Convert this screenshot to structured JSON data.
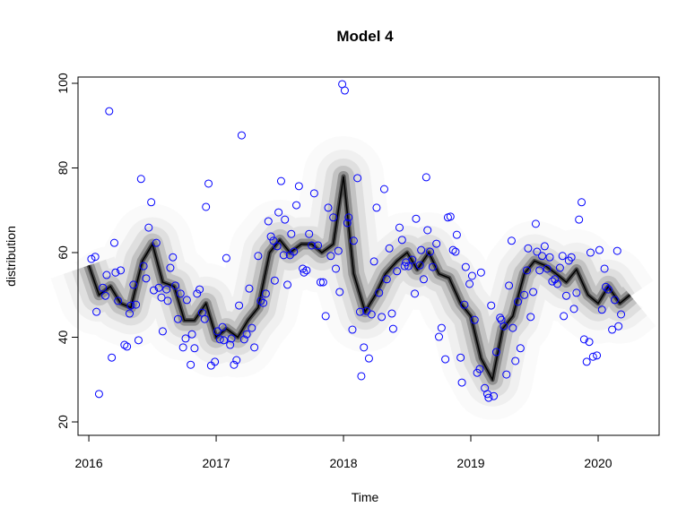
{
  "chart_data": {
    "type": "scatter",
    "title": "Model 4",
    "x_label": "Time",
    "y_label": "distribution",
    "xlim": [
      2015.915,
      2020.479
    ],
    "ylim": [
      16.83,
      101.48
    ],
    "xticks": [
      2016,
      2017,
      2018,
      2019,
      2020
    ],
    "yticks": [
      20,
      40,
      60,
      80,
      100
    ],
    "fan": {
      "color": "#000000",
      "x": [
        2016.0,
        2016.08,
        2016.17,
        2016.25,
        2016.33,
        2016.42,
        2016.5,
        2016.58,
        2016.67,
        2016.75,
        2016.83,
        2016.92,
        2017.0,
        2017.08,
        2017.17,
        2017.25,
        2017.33,
        2017.42,
        2017.5,
        2017.58,
        2017.67,
        2017.75,
        2017.83,
        2017.92,
        2018.0,
        2018.08,
        2018.17,
        2018.25,
        2018.33,
        2018.42,
        2018.5,
        2018.58,
        2018.67,
        2018.75,
        2018.83,
        2018.92,
        2019.0,
        2019.08,
        2019.17,
        2019.25,
        2019.33,
        2019.42,
        2019.5,
        2019.58,
        2019.67,
        2019.75,
        2019.83,
        2019.92,
        2020.0,
        2020.08,
        2020.17,
        2020.25
      ],
      "values": [
        57,
        50,
        52,
        48,
        47,
        58,
        62,
        53,
        52,
        44,
        44,
        48,
        40,
        42,
        40,
        44,
        47,
        60,
        63,
        60,
        62,
        62,
        60,
        62,
        78,
        55,
        46,
        50,
        55,
        58,
        60,
        56,
        60,
        55,
        54,
        48,
        45,
        35,
        30,
        42,
        45,
        55,
        58,
        57,
        55,
        53,
        56,
        50,
        48,
        52,
        48,
        50
      ]
    },
    "series": [
      {
        "color": "#0000ff",
        "x": [
          2016.02,
          2016.05,
          2016.06,
          2016.08,
          2016.11,
          2016.13,
          2016.14,
          2016.16,
          2016.18,
          2016.2,
          2016.21,
          2016.23,
          2016.25,
          2016.28,
          2016.3,
          2016.32,
          2016.33,
          2016.35,
          2016.37,
          2016.39,
          2016.41,
          2016.43,
          2016.45,
          2016.47,
          2016.49,
          2016.51,
          2016.53,
          2016.55,
          2016.57,
          2016.58,
          2016.61,
          2016.62,
          2016.64,
          2016.66,
          2016.68,
          2016.7,
          2016.72,
          2016.74,
          2016.76,
          2016.77,
          2016.8,
          2016.81,
          2016.83,
          2016.85,
          2016.87,
          2016.89,
          2016.91,
          2016.92,
          2016.94,
          2016.96,
          2016.99,
          2017.01,
          2017.03,
          2017.05,
          2017.06,
          2017.08,
          2017.11,
          2017.12,
          2017.14,
          2017.16,
          2017.18,
          2017.2,
          2017.22,
          2017.24,
          2017.26,
          2017.28,
          2017.3,
          2017.33,
          2017.35,
          2017.37,
          2017.39,
          2017.41,
          2017.43,
          2017.45,
          2017.46,
          2017.48,
          2017.49,
          2017.51,
          2017.53,
          2017.54,
          2017.56,
          2017.58,
          2017.59,
          2017.61,
          2017.63,
          2017.65,
          2017.68,
          2017.69,
          2017.71,
          2017.73,
          2017.75,
          2017.77,
          2017.8,
          2017.82,
          2017.84,
          2017.86,
          2017.88,
          2017.9,
          2017.92,
          2017.94,
          2017.96,
          2017.97,
          2017.99,
          2018.01,
          2018.03,
          2018.04,
          2018.07,
          2018.08,
          2018.11,
          2018.13,
          2018.14,
          2018.16,
          2018.18,
          2018.2,
          2018.22,
          2018.24,
          2018.26,
          2018.28,
          2018.3,
          2018.32,
          2018.34,
          2018.36,
          2018.38,
          2018.39,
          2018.42,
          2018.44,
          2018.46,
          2018.48,
          2018.49,
          2018.51,
          2018.54,
          2018.56,
          2018.57,
          2018.6,
          2018.61,
          2018.63,
          2018.65,
          2018.66,
          2018.68,
          2018.7,
          2018.73,
          2018.75,
          2018.77,
          2018.8,
          2018.82,
          2018.84,
          2018.86,
          2018.88,
          2018.89,
          2018.92,
          2018.93,
          2018.95,
          2018.96,
          2018.99,
          2019.01,
          2019.03,
          2019.05,
          2019.07,
          2019.08,
          2019.11,
          2019.13,
          2019.14,
          2019.16,
          2019.18,
          2019.2,
          2019.23,
          2019.24,
          2019.26,
          2019.28,
          2019.3,
          2019.32,
          2019.33,
          2019.35,
          2019.37,
          2019.39,
          2019.42,
          2019.44,
          2019.45,
          2019.47,
          2019.49,
          2019.51,
          2019.52,
          2019.54,
          2019.56,
          2019.58,
          2019.6,
          2019.62,
          2019.64,
          2019.66,
          2019.68,
          2019.7,
          2019.72,
          2019.73,
          2019.75,
          2019.77,
          2019.79,
          2019.81,
          2019.83,
          2019.85,
          2019.87,
          2019.89,
          2019.91,
          2019.93,
          2019.94,
          2019.96,
          2019.99,
          2020.01,
          2020.03,
          2020.05,
          2020.06,
          2020.08,
          2020.11,
          2020.13,
          2020.15,
          2020.16,
          2020.18
        ],
        "values": [
          58.5,
          59,
          46,
          26.6,
          51.7,
          49.8,
          54.7,
          93.4,
          35.2,
          62.3,
          55.3,
          48.6,
          55.8,
          38.2,
          37.8,
          45.6,
          47.5,
          52.4,
          47.7,
          39.3,
          77.4,
          56.8,
          53.9,
          65.9,
          71.9,
          51.1,
          62.3,
          51.7,
          49.4,
          41.4,
          51.3,
          48.6,
          56.4,
          58.9,
          52.2,
          44.3,
          50.3,
          37.6,
          39.7,
          48.8,
          33.5,
          40.7,
          37.4,
          50.3,
          51.3,
          45.8,
          44.3,
          70.8,
          76.3,
          33.3,
          34.2,
          41.4,
          39.5,
          42.4,
          39.3,
          58.7,
          38.2,
          39.7,
          33.5,
          34.6,
          47.5,
          87.7,
          39.5,
          40.7,
          51.5,
          42.2,
          37.6,
          59.2,
          48.6,
          48.1,
          50.3,
          67.4,
          63.8,
          62.8,
          53.4,
          61.5,
          69.5,
          76.9,
          59.4,
          67.8,
          52.4,
          59.4,
          64.4,
          60.2,
          71.2,
          75.7,
          56.2,
          55.3,
          55.8,
          64.4,
          61.7,
          74,
          61.7,
          53,
          53,
          45,
          70.6,
          59.2,
          68.3,
          56.2,
          60.4,
          50.7,
          99.8,
          98.3,
          67,
          68.3,
          41.8,
          62.8,
          77.6,
          46,
          30.8,
          37.6,
          46.2,
          35,
          45.4,
          57.9,
          70.6,
          50.5,
          44.8,
          75,
          53.7,
          61,
          45.6,
          42,
          55.6,
          65.9,
          63,
          56.8,
          57.7,
          56.8,
          58.3,
          50.3,
          68,
          57,
          60.6,
          53.7,
          77.8,
          65.3,
          60.2,
          56.6,
          62.1,
          40.1,
          42.2,
          34.8,
          68.3,
          68.5,
          60.6,
          60.2,
          64.2,
          35.2,
          29.3,
          47.7,
          56.6,
          52.6,
          54.5,
          44.1,
          31.6,
          32.5,
          55.3,
          28,
          26.6,
          25.7,
          47.5,
          26.1,
          36.5,
          44.6,
          44.1,
          42.6,
          31.2,
          52.2,
          62.8,
          42.2,
          34.4,
          48.4,
          37.4,
          50,
          55.8,
          61,
          44.8,
          50.7,
          66.8,
          60.2,
          55.8,
          59.2,
          61.5,
          56.2,
          58.9,
          53.2,
          53.7,
          52.6,
          56.4,
          59.2,
          45,
          49.8,
          58.1,
          58.9,
          46.7,
          50.5,
          67.8,
          71.9,
          39.5,
          34.2,
          38.9,
          60,
          35.4,
          35.7,
          60.6,
          46.5,
          56.2,
          51.9,
          51.3,
          41.8,
          48.8,
          60.4,
          42.6,
          45.4
        ]
      }
    ]
  }
}
